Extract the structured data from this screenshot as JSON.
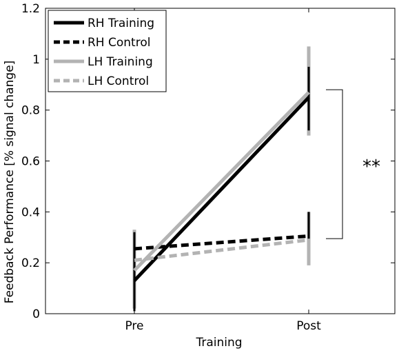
{
  "chart_data": {
    "type": "line",
    "categories": [
      "Pre",
      "Post"
    ],
    "xlabel": "Training",
    "ylabel": "Feedback Performance  [% signal change]",
    "ylim": [
      0,
      1.2
    ],
    "yticks": [
      "0",
      "0.2",
      "0.4",
      "0.6",
      "0.8",
      "1",
      "1.2"
    ],
    "grid": false,
    "legend_position": "top-left",
    "series": [
      {
        "name": "RH Training",
        "values": [
          0.13,
          0.85
        ],
        "err": [
          [
            0.01,
            0.32
          ],
          [
            0.72,
            0.97
          ]
        ],
        "color": "#000000",
        "dashed": false
      },
      {
        "name": "RH Control",
        "values": [
          0.255,
          0.305
        ],
        "err": [
          [
            0.01,
            0.32
          ],
          [
            0.295,
            0.4
          ]
        ],
        "color": "#000000",
        "dashed": true
      },
      {
        "name": "LH Training",
        "values": [
          0.17,
          0.87
        ],
        "err": [
          [
            0.03,
            0.33
          ],
          [
            0.7,
            1.05
          ]
        ],
        "color": "#b3b3b3",
        "dashed": false
      },
      {
        "name": "LH Control",
        "values": [
          0.21,
          0.29
        ],
        "err": [
          [
            0.02,
            0.32
          ],
          [
            0.19,
            0.4
          ]
        ],
        "color": "#b3b3b3",
        "dashed": true
      }
    ],
    "annotation": {
      "text": "**",
      "from": 0.88,
      "to": 0.295
    }
  }
}
